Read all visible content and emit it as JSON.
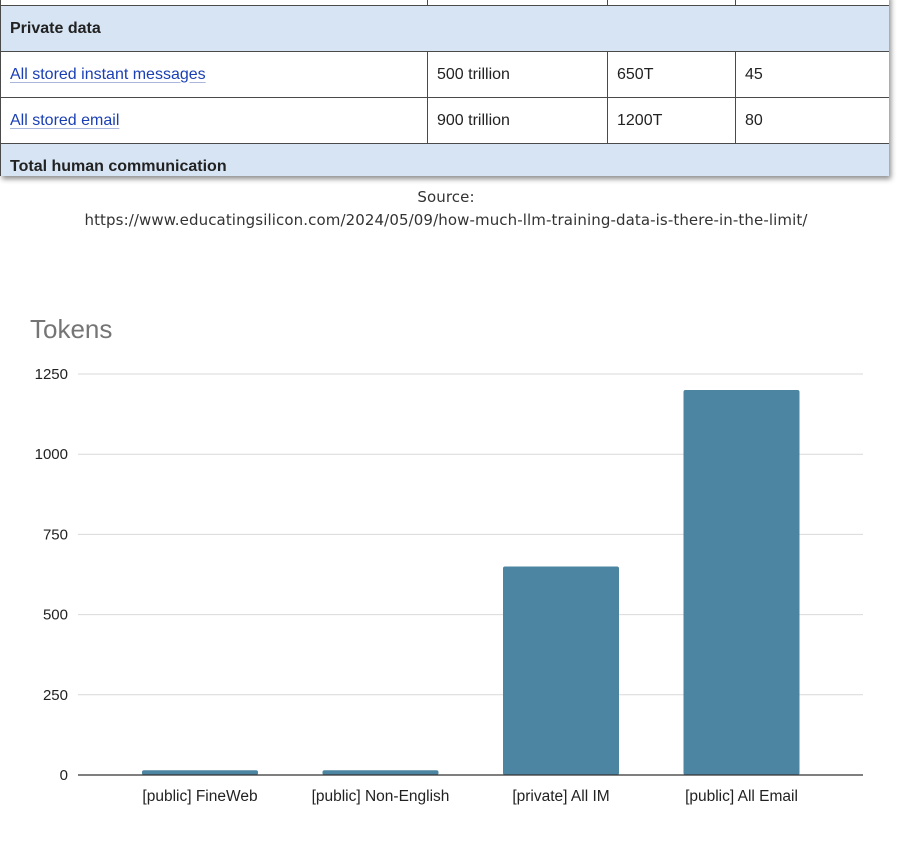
{
  "table": {
    "sections": {
      "private_title": "Private data",
      "total_title": "Total human communication"
    },
    "rows": [
      {
        "name": "All stored instant messages",
        "words": "500 trillion",
        "tokens": "650T",
        "value": "45"
      },
      {
        "name": "All stored email",
        "words": "900 trillion",
        "tokens": "1200T",
        "value": "80"
      }
    ]
  },
  "source": {
    "label": "Source:",
    "url": "https://www.educatingsilicon.com/2024/05/09/how-much-llm-training-data-is-there-in-the-limit/"
  },
  "colors": {
    "bar": "#4b85a1",
    "section_bg": "#d6e4f3",
    "link": "#1a3fb5",
    "grid": "#d9d9d9"
  },
  "chart_data": {
    "type": "bar",
    "title": "Tokens",
    "categories": [
      "[public] FineWeb",
      "[public] Non-English",
      "[private] All IM",
      "[public] All Email"
    ],
    "values": [
      15,
      15,
      650,
      1200
    ],
    "yticks": [
      "0",
      "250",
      "500",
      "750",
      "1000",
      "1250"
    ],
    "ylim": [
      0,
      1250
    ],
    "grid": true,
    "legend": "none",
    "xlabel": "",
    "ylabel": ""
  }
}
